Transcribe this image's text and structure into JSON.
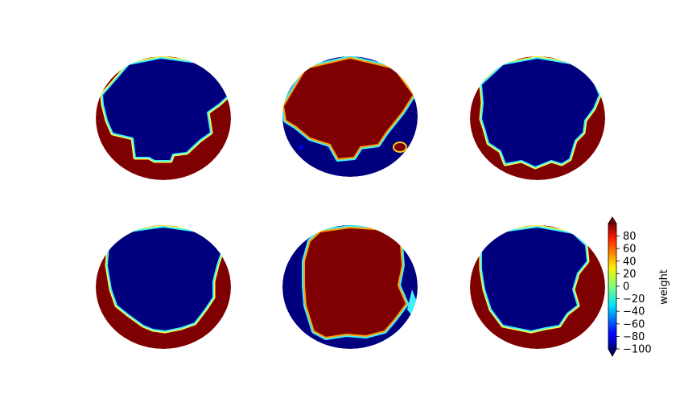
{
  "chart_data": {
    "type": "heatmap",
    "panel_count": 6,
    "layout": "2 rows x 3 columns of circular maps",
    "colormap": "jet",
    "grid": false,
    "axes_visible": false,
    "panels": [
      {
        "id": "top-left",
        "row": 1,
        "col": 1,
        "inner_value": -100,
        "outer_value": 100
      },
      {
        "id": "top-middle",
        "row": 1,
        "col": 2,
        "inner_value": 100,
        "outer_value": -100
      },
      {
        "id": "top-right",
        "row": 1,
        "col": 3,
        "inner_value": -100,
        "outer_value": 100
      },
      {
        "id": "bottom-left",
        "row": 2,
        "col": 1,
        "inner_value": -100,
        "outer_value": 100
      },
      {
        "id": "bottom-middle",
        "row": 2,
        "col": 2,
        "inner_value": 100,
        "outer_value": -100
      },
      {
        "id": "bottom-right",
        "row": 2,
        "col": 3,
        "inner_value": -100,
        "outer_value": 100
      }
    ],
    "colorbar": {
      "label": "weight",
      "range": [
        -100,
        100
      ],
      "extend": "both",
      "placement": "right",
      "ticks": [
        80,
        60,
        40,
        20,
        0,
        -20,
        -40,
        -60,
        -80,
        -100
      ],
      "tick_labels": [
        "80",
        "60",
        "40",
        "20",
        "0",
        "−20",
        "−40",
        "−60",
        "−80",
        "−100"
      ]
    }
  }
}
